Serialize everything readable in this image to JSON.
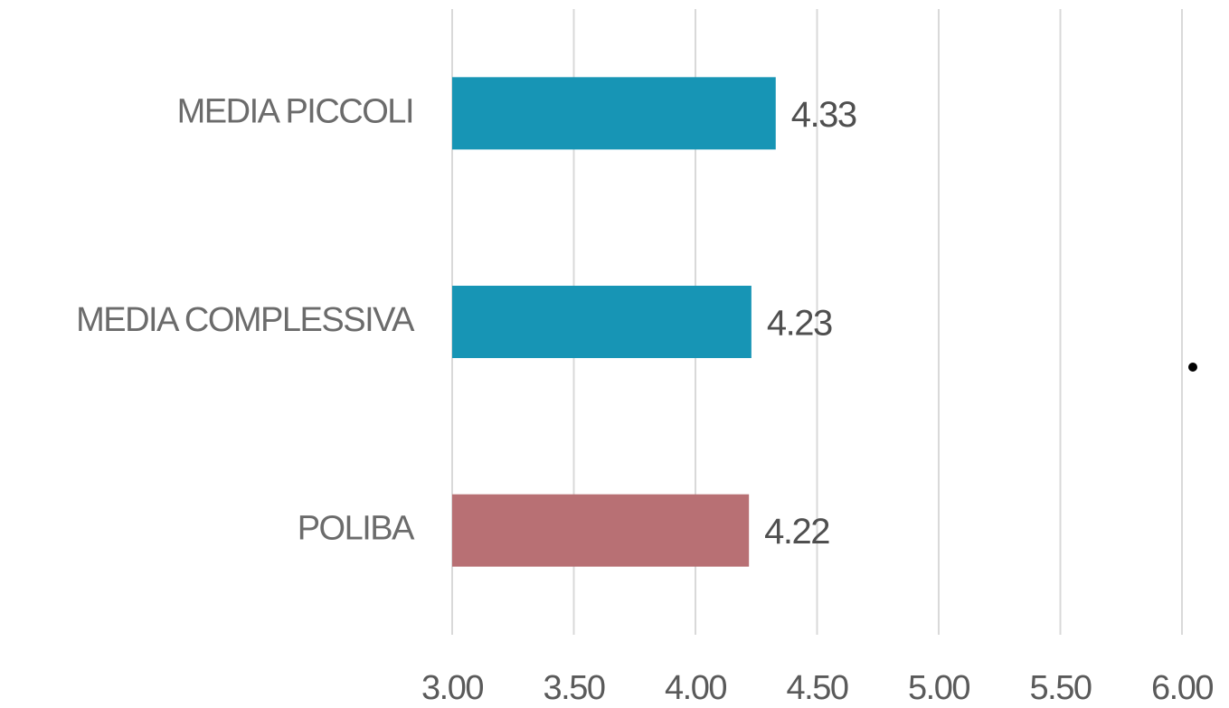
{
  "chart_data": {
    "type": "bar",
    "orientation": "horizontal",
    "categories": [
      "MEDIA PICCOLI",
      "MEDIA COMPLESSIVA",
      "POLIBA"
    ],
    "values": [
      4.33,
      4.23,
      4.22
    ],
    "colors": [
      "#1795b5",
      "#1795b5",
      "#b87074"
    ],
    "xlim": [
      3,
      6
    ],
    "xticks": [
      {
        "value": 3,
        "label": "3.00"
      },
      {
        "value": 3.5,
        "label": "3.50"
      },
      {
        "value": 4,
        "label": "4.00"
      },
      {
        "value": 4.5,
        "label": "4.50"
      },
      {
        "value": 5,
        "label": "5.00"
      },
      {
        "value": 5.5,
        "label": "5.50"
      },
      {
        "value": 6,
        "label": "6.00"
      }
    ],
    "grid": true
  }
}
